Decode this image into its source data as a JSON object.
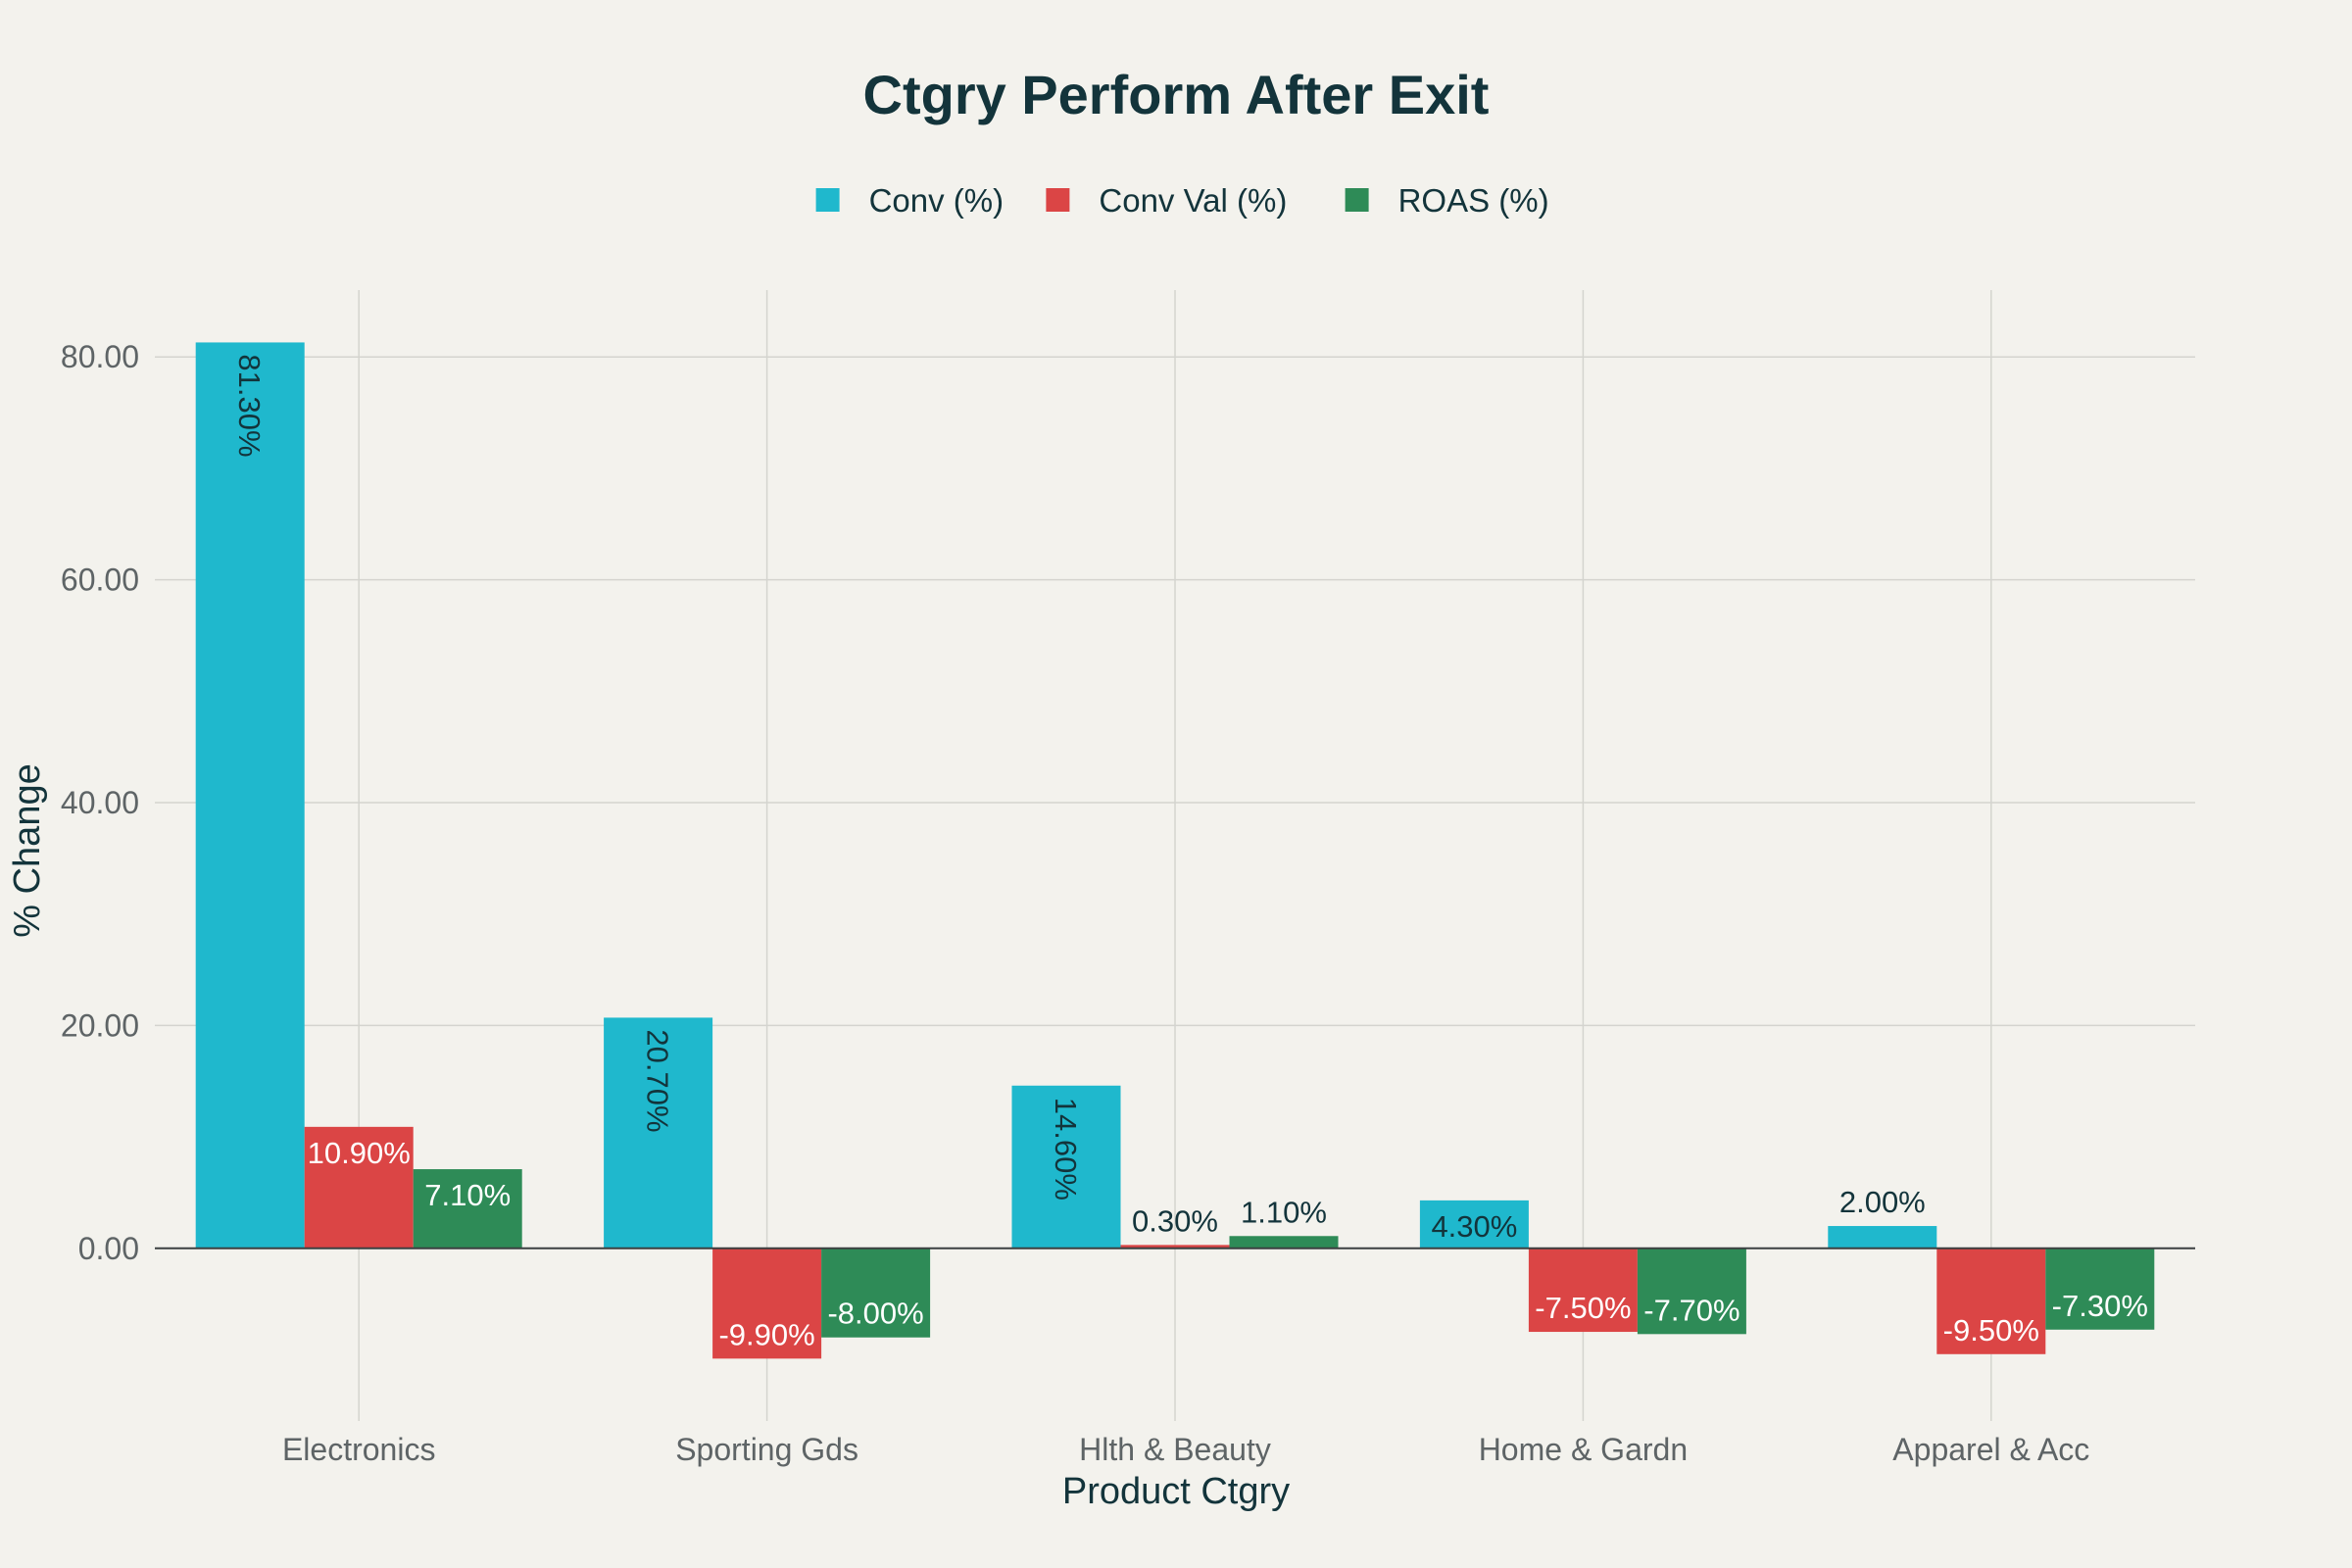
{
  "chart_data": {
    "type": "bar",
    "title": "Ctgry Perform After Exit",
    "xlabel": "Product Ctgry",
    "ylabel": "% Change",
    "categories": [
      "Electronics",
      "Sporting Gds",
      "Hlth & Beauty",
      "Home & Gardn",
      "Apparel & Acc"
    ],
    "series": [
      {
        "name": "Conv (%)",
        "color": "#1fb8cd",
        "values": [
          81.3,
          20.7,
          14.6,
          4.3,
          2.0
        ],
        "labels": [
          "81.30%",
          "20.70%",
          "14.60%",
          "4.30%",
          "2.00%"
        ]
      },
      {
        "name": "Conv Val (%)",
        "color": "#db4545",
        "values": [
          10.9,
          -9.9,
          0.3,
          -7.5,
          -9.5
        ],
        "labels": [
          "10.90%",
          "-9.90%",
          "0.30%",
          "-7.50%",
          "-9.50%"
        ]
      },
      {
        "name": "ROAS (%)",
        "color": "#2e8b57",
        "values": [
          7.1,
          -8.0,
          1.1,
          -7.7,
          -7.3
        ],
        "labels": [
          "7.10%",
          "-8.00%",
          "1.10%",
          "-7.70%",
          "-7.30%"
        ]
      }
    ],
    "ylim": [
      -15.5,
      86
    ],
    "yticks": [
      0,
      20,
      40,
      60,
      80
    ],
    "ytick_labels": [
      "0.00",
      "20.00",
      "40.00",
      "60.00",
      "80.00"
    ],
    "grid": true,
    "legend_position": "top-center"
  }
}
